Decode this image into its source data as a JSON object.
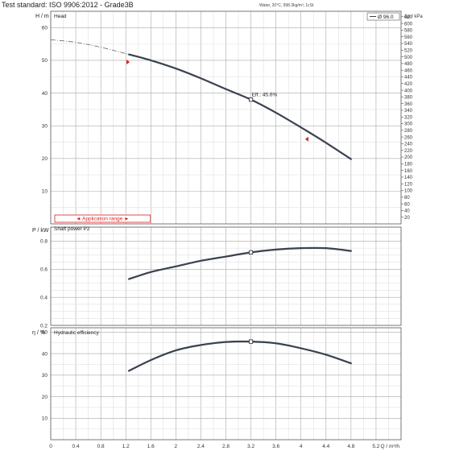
{
  "header": {
    "standard": "Test standard: ISO 9906:2012 - Grade3B",
    "note": "Water, 20°C, 998.3kg/m³, 1cSt"
  },
  "colors": {
    "curve": "#3a4250",
    "grid_major": "#a8a8a8",
    "grid_minor": "#e0e0e0",
    "marker": "#e02020",
    "frame": "#555555"
  },
  "chart_data": [
    {
      "type": "line",
      "panel": "head",
      "title": "Head",
      "ylabel": "H / m",
      "y2label": "Δp / kPa",
      "xlim": [
        0,
        5.6
      ],
      "ylim": [
        0,
        65
      ],
      "y_ticks": [
        10,
        20,
        30,
        40,
        50,
        60
      ],
      "y2_ticks": [
        20,
        40,
        60,
        80,
        100,
        120,
        140,
        160,
        180,
        200,
        220,
        240,
        260,
        280,
        300,
        320,
        340,
        360,
        380,
        400,
        420,
        440,
        460,
        480,
        500,
        520,
        540,
        560,
        580,
        600,
        620,
        640
      ],
      "legend": "Ø 96.0",
      "legend_position": "top-right",
      "grid": true,
      "series": [
        {
          "name": "Ø 96.0",
          "x": [
            1.25,
            1.6,
            2.0,
            2.4,
            2.8,
            3.2,
            3.6,
            4.0,
            4.4,
            4.8
          ],
          "y": [
            51.8,
            50.0,
            47.5,
            44.5,
            41.2,
            38.0,
            34.0,
            29.5,
            24.8,
            19.8
          ]
        }
      ],
      "extrapolation": {
        "x": [
          0.0,
          0.4,
          0.8,
          1.25
        ],
        "y": [
          56.3,
          55.5,
          54.0,
          51.8
        ]
      },
      "annotation": {
        "label": "Eff.: 45.6%",
        "x": 3.2,
        "y": 38.0
      },
      "application_range_label": "◄ Application range ►",
      "application_range": [
        1.25,
        4.08
      ],
      "range_markers": [
        {
          "x": 1.25,
          "y": 49.5
        },
        {
          "x": 4.08,
          "y": 25.9
        }
      ]
    },
    {
      "type": "line",
      "panel": "power",
      "title": "Shaft power P2",
      "ylabel": "P / kW",
      "xlim": [
        0,
        5.6
      ],
      "ylim": [
        0.2,
        0.9
      ],
      "y_ticks": [
        0.2,
        0.4,
        0.6,
        0.8
      ],
      "grid": true,
      "series": [
        {
          "name": "Shaft power P2",
          "x": [
            1.25,
            1.6,
            2.0,
            2.4,
            2.8,
            3.2,
            3.6,
            4.0,
            4.4,
            4.8
          ],
          "y": [
            0.53,
            0.58,
            0.62,
            0.66,
            0.69,
            0.72,
            0.74,
            0.75,
            0.75,
            0.73
          ]
        }
      ],
      "marker_point": {
        "x": 3.2,
        "y": 0.72
      }
    },
    {
      "type": "line",
      "panel": "efficiency",
      "title": "Hydraulic efficiency",
      "ylabel": "η / %",
      "xlabel": "Q / m³/h",
      "xlim": [
        0,
        5.6
      ],
      "ylim": [
        0,
        52
      ],
      "y_ticks": [
        10,
        20,
        30,
        40,
        50
      ],
      "x_ticks": [
        0,
        0.4,
        0.8,
        1.2,
        1.6,
        2,
        2.4,
        2.8,
        3.2,
        3.6,
        4,
        4.4,
        4.8,
        5.2
      ],
      "x_tick_labels": [
        "0",
        "0.4",
        "0.8",
        "1.2",
        "1.6",
        "2",
        "2.4",
        "2.8",
        "3.2",
        "3.6",
        "4",
        "4.4",
        "4.8",
        "5.2"
      ],
      "grid": true,
      "series": [
        {
          "name": "Hydraulic efficiency",
          "x": [
            1.25,
            1.6,
            2.0,
            2.4,
            2.8,
            3.2,
            3.6,
            4.0,
            4.4,
            4.8
          ],
          "y": [
            32.0,
            37.0,
            41.5,
            44.0,
            45.4,
            45.6,
            44.8,
            42.5,
            39.5,
            35.5
          ]
        }
      ],
      "marker_point": {
        "x": 3.2,
        "y": 45.6
      }
    }
  ]
}
